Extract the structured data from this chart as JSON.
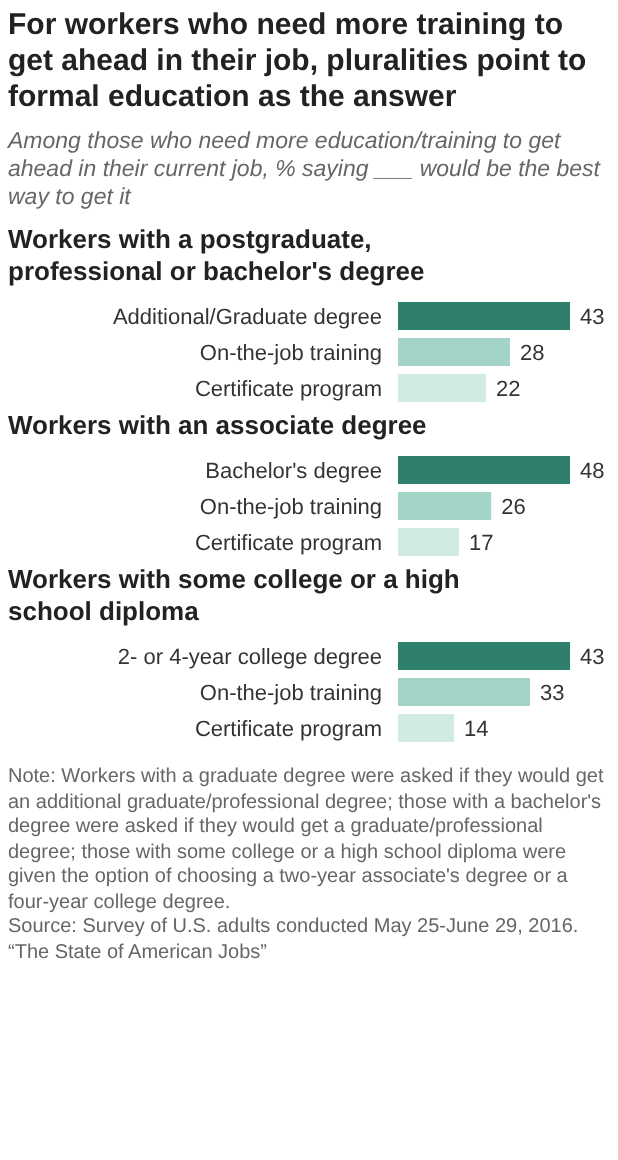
{
  "chart_data": [
    {
      "type": "other",
      "title": "For workers who need more training to get ahead in their job, pluralities point to formal education as the answer",
      "subtitle": "Among those who need more education/training to get ahead in their current job, % saying ___ would be the best way to get it"
    },
    {
      "type": "bar",
      "orientation": "horizontal",
      "title": "Workers with a postgraduate, professional or bachelor's degree",
      "categories": [
        "Additional/Graduate degree",
        "On-the-job training",
        "Certificate program"
      ],
      "values": [
        43,
        28,
        22
      ],
      "colors": [
        "#2f7f6d",
        "#a2d5c8",
        "#d1ebe4"
      ],
      "data_labels": true
    },
    {
      "type": "bar",
      "orientation": "horizontal",
      "title": "Workers with an associate degree",
      "categories": [
        "Bachelor's degree",
        "On-the-job training",
        "Certificate program"
      ],
      "values": [
        48,
        26,
        17
      ],
      "colors": [
        "#2f7f6d",
        "#a2d5c8",
        "#d1ebe4"
      ],
      "data_labels": true
    },
    {
      "type": "bar",
      "orientation": "horizontal",
      "title": "Workers with some college or a high school diploma",
      "categories": [
        "2- or 4-year college degree",
        "On-the-job training",
        "Certificate program"
      ],
      "values": [
        43,
        33,
        14
      ],
      "colors": [
        "#2f7f6d",
        "#a2d5c8",
        "#d1ebe4"
      ],
      "data_labels": true,
      "annotations": [
        "Note: Workers with a graduate degree were asked if they would get an additional graduate/professional degree; those with a bachelor's degree were asked if they would get a graduate/professional degree; those with some college or a high school diploma were given the option of choosing a two-year associate's degree or a four-year college degree.",
        "Source: Survey of U.S. adults conducted May 25-June 29, 2016.",
        "“The State of American Jobs”"
      ]
    }
  ]
}
